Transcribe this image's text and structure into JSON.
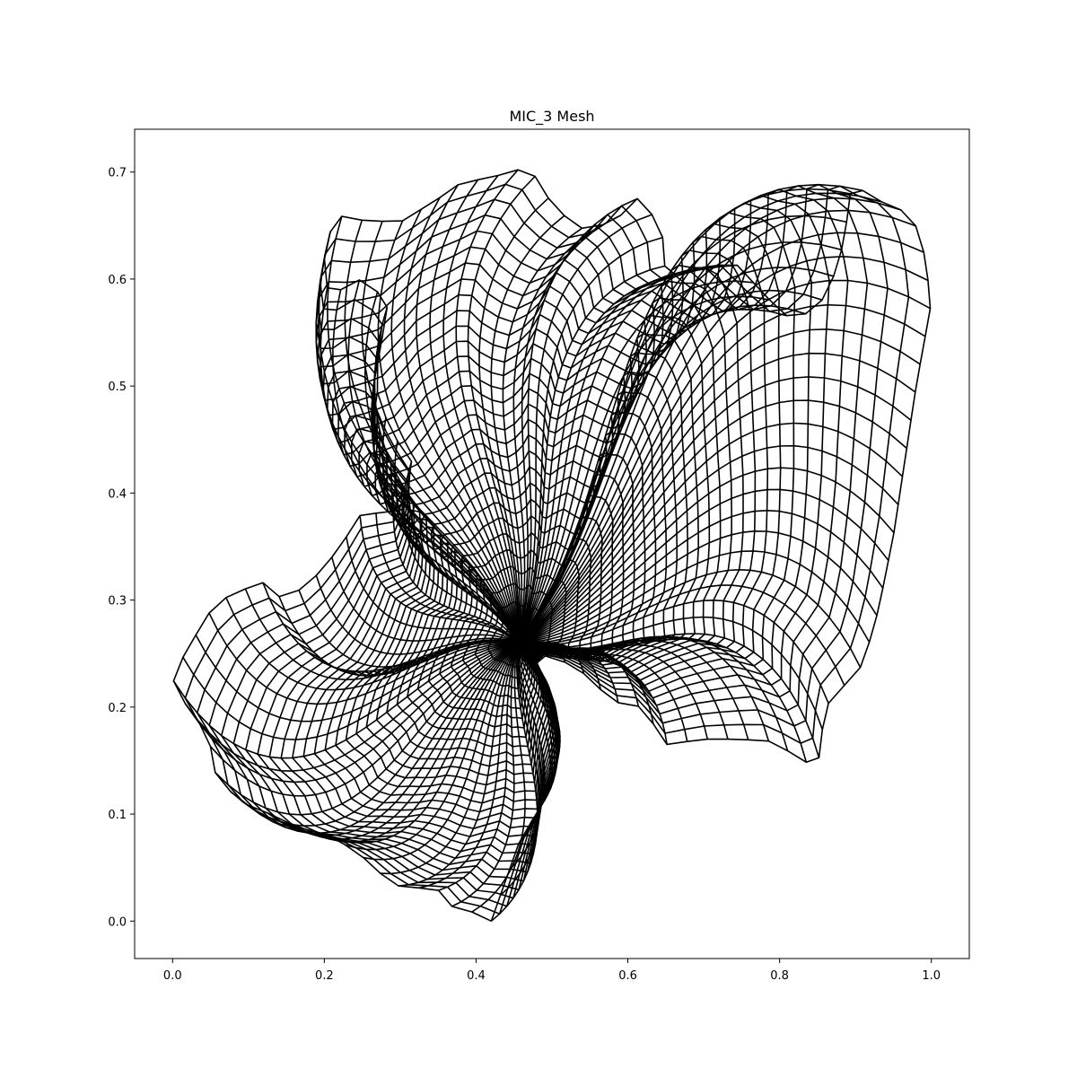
{
  "chart_data": {
    "type": "mesh",
    "title": "MIC_3 Mesh",
    "xlabel": "",
    "ylabel": "",
    "xlim": [
      -0.05,
      1.05
    ],
    "ylim": [
      -0.035,
      0.74
    ],
    "xticks": [
      "0.0",
      "0.2",
      "0.4",
      "0.6",
      "0.8",
      "1.0"
    ],
    "yticks": [
      "0.0",
      "0.1",
      "0.2",
      "0.3",
      "0.4",
      "0.5",
      "0.6",
      "0.7"
    ],
    "grid": false,
    "line_color": "#000000",
    "center": [
      0.455,
      0.26
    ],
    "grid_resolution": {
      "rings": 30,
      "spokes": 130
    },
    "boundary": [
      [
        0.42,
        0.0
      ],
      [
        0.39,
        0.01
      ],
      [
        0.355,
        0.016
      ],
      [
        0.35,
        0.03
      ],
      [
        0.325,
        0.031
      ],
      [
        0.3,
        0.032
      ],
      [
        0.28,
        0.04
      ],
      [
        0.26,
        0.055
      ],
      [
        0.22,
        0.075
      ],
      [
        0.2,
        0.082
      ],
      [
        0.16,
        0.088
      ],
      [
        0.135,
        0.1
      ],
      [
        0.115,
        0.102
      ],
      [
        0.095,
        0.11
      ],
      [
        0.07,
        0.125
      ],
      [
        0.05,
        0.145
      ],
      [
        0.05,
        0.17
      ],
      [
        0.04,
        0.18
      ],
      [
        0.02,
        0.2
      ],
      [
        0.005,
        0.215
      ],
      [
        0.0,
        0.228
      ],
      [
        0.02,
        0.255
      ],
      [
        0.05,
        0.29
      ],
      [
        0.075,
        0.305
      ],
      [
        0.095,
        0.31
      ],
      [
        0.115,
        0.32
      ],
      [
        0.135,
        0.302
      ],
      [
        0.17,
        0.31
      ],
      [
        0.2,
        0.33
      ],
      [
        0.23,
        0.36
      ],
      [
        0.255,
        0.388
      ],
      [
        0.28,
        0.375
      ],
      [
        0.3,
        0.39
      ],
      [
        0.315,
        0.43
      ],
      [
        0.29,
        0.455
      ],
      [
        0.27,
        0.49
      ],
      [
        0.27,
        0.52
      ],
      [
        0.28,
        0.56
      ],
      [
        0.285,
        0.585
      ],
      [
        0.26,
        0.59
      ],
      [
        0.245,
        0.6
      ],
      [
        0.205,
        0.583
      ],
      [
        0.2,
        0.62
      ],
      [
        0.213,
        0.66
      ],
      [
        0.25,
        0.655
      ],
      [
        0.3,
        0.653
      ],
      [
        0.35,
        0.675
      ],
      [
        0.38,
        0.69
      ],
      [
        0.42,
        0.695
      ],
      [
        0.47,
        0.705
      ],
      [
        0.5,
        0.67
      ],
      [
        0.535,
        0.647
      ],
      [
        0.58,
        0.652
      ],
      [
        0.615,
        0.677
      ],
      [
        0.645,
        0.647
      ],
      [
        0.65,
        0.6
      ],
      [
        0.7,
        0.61
      ],
      [
        0.745,
        0.613
      ],
      [
        0.78,
        0.585
      ],
      [
        0.815,
        0.562
      ],
      [
        0.85,
        0.572
      ],
      [
        0.87,
        0.6
      ],
      [
        0.885,
        0.635
      ],
      [
        0.895,
        0.69
      ],
      [
        0.925,
        0.675
      ],
      [
        0.975,
        0.66
      ],
      [
        0.99,
        0.625
      ],
      [
        1.0,
        0.578
      ],
      [
        0.98,
        0.5
      ],
      [
        0.965,
        0.43
      ],
      [
        0.95,
        0.36
      ],
      [
        0.93,
        0.29
      ],
      [
        0.91,
        0.24
      ],
      [
        0.86,
        0.2
      ],
      [
        0.85,
        0.142
      ],
      [
        0.79,
        0.168
      ],
      [
        0.745,
        0.17
      ],
      [
        0.7,
        0.17
      ],
      [
        0.65,
        0.165
      ],
      [
        0.62,
        0.2
      ],
      [
        0.58,
        0.205
      ],
      [
        0.545,
        0.23
      ],
      [
        0.51,
        0.245
      ],
      [
        0.475,
        0.25
      ],
      [
        0.49,
        0.2
      ],
      [
        0.5,
        0.18
      ],
      [
        0.5,
        0.125
      ],
      [
        0.48,
        0.1
      ],
      [
        0.46,
        0.08
      ],
      [
        0.44,
        0.04
      ]
    ]
  }
}
